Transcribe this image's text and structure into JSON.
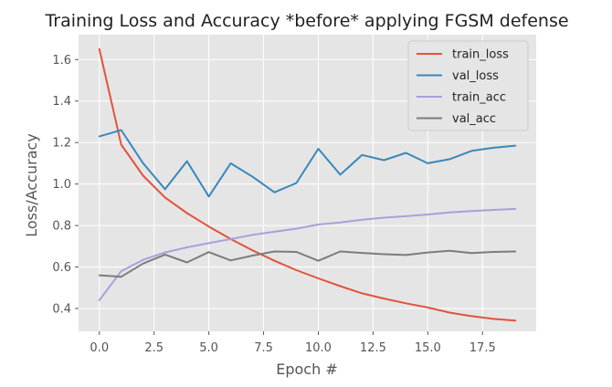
{
  "chart_data": {
    "type": "line",
    "title": "Training Loss and Accuracy *before* applying FGSM defense",
    "xlabel": "Epoch #",
    "ylabel": "Loss/Accuracy",
    "xlim": [
      -0.95,
      19.95
    ],
    "ylim": [
      0.29,
      1.72
    ],
    "xticks": [
      0.0,
      2.5,
      5.0,
      7.5,
      10.0,
      12.5,
      15.0,
      17.5
    ],
    "xtick_labels": [
      "0.0",
      "2.5",
      "5.0",
      "7.5",
      "10.0",
      "12.5",
      "15.0",
      "17.5"
    ],
    "yticks": [
      0.4,
      0.6,
      0.8,
      1.0,
      1.2,
      1.4,
      1.6
    ],
    "ytick_labels": [
      "0.4",
      "0.6",
      "0.8",
      "1.0",
      "1.2",
      "1.4",
      "1.6"
    ],
    "grid": true,
    "legend_position": "top-right",
    "style": "ggplot",
    "x": [
      0,
      1,
      2,
      3,
      4,
      5,
      6,
      7,
      8,
      9,
      10,
      11,
      12,
      13,
      14,
      15,
      16,
      17,
      18,
      19
    ],
    "series": [
      {
        "name": "train_loss",
        "color": "#e2533c",
        "values": [
          1.65,
          1.19,
          1.04,
          0.935,
          0.86,
          0.795,
          0.735,
          0.68,
          0.63,
          0.585,
          0.545,
          0.508,
          0.473,
          0.448,
          0.425,
          0.405,
          0.38,
          0.363,
          0.35,
          0.342
        ]
      },
      {
        "name": "val_loss",
        "color": "#3a87bb",
        "values": [
          1.23,
          1.26,
          1.1,
          0.975,
          1.11,
          0.94,
          1.1,
          1.035,
          0.96,
          1.005,
          1.17,
          1.045,
          1.14,
          1.115,
          1.15,
          1.1,
          1.12,
          1.16,
          1.175,
          1.185
        ]
      },
      {
        "name": "train_acc",
        "color": "#a99fdc",
        "values": [
          0.44,
          0.58,
          0.635,
          0.67,
          0.695,
          0.715,
          0.735,
          0.755,
          0.77,
          0.785,
          0.805,
          0.815,
          0.828,
          0.838,
          0.845,
          0.853,
          0.863,
          0.87,
          0.875,
          0.88
        ]
      },
      {
        "name": "val_acc",
        "color": "#7c7c7c",
        "values": [
          0.56,
          0.553,
          0.617,
          0.66,
          0.622,
          0.672,
          0.632,
          0.655,
          0.675,
          0.673,
          0.63,
          0.675,
          0.668,
          0.662,
          0.658,
          0.67,
          0.678,
          0.667,
          0.673,
          0.675
        ]
      }
    ]
  }
}
